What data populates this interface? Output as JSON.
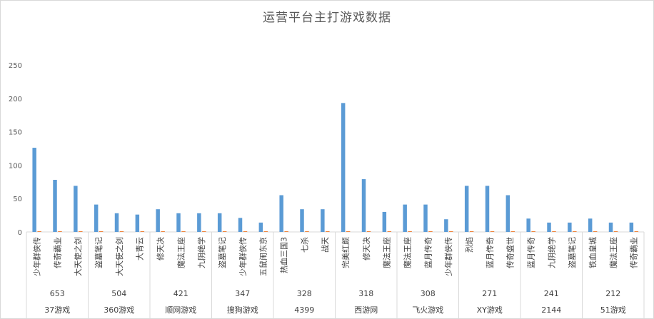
{
  "chart_data": {
    "type": "bar",
    "title": "运营平台主打游戏数据",
    "ylim": [
      0,
      250
    ],
    "yticks": [
      0,
      50,
      100,
      150,
      200,
      250
    ],
    "grid": false,
    "legend": "none",
    "colors": {
      "primary": "#5b9bd5",
      "secondary": "#ed7d31"
    },
    "groups": [
      {
        "name": "37游戏",
        "total": "653",
        "categories": [
          "少年群侠传",
          "传奇霸业",
          "大天使之剑"
        ],
        "values": [
          126,
          78,
          69
        ],
        "values2": [
          1,
          1,
          1
        ]
      },
      {
        "name": "360游戏",
        "total": "504",
        "categories": [
          "盗墓笔记",
          "大天使之剑",
          "大青云"
        ],
        "values": [
          41,
          28,
          26
        ],
        "values2": [
          1,
          1,
          1
        ]
      },
      {
        "name": "顺网游戏",
        "total": "421",
        "categories": [
          "修天决",
          "魔法王座",
          "九阴绝学"
        ],
        "values": [
          34,
          28,
          28
        ],
        "values2": [
          1,
          1,
          1
        ]
      },
      {
        "name": "搜狗游戏",
        "total": "347",
        "categories": [
          "盗墓笔记",
          "少年群侠传",
          "五鼠闹东京"
        ],
        "values": [
          28,
          21,
          14
        ],
        "values2": [
          1,
          1,
          1
        ]
      },
      {
        "name": "4399",
        "total": "328",
        "categories": [
          "热血三国3",
          "七杀",
          "战天"
        ],
        "values": [
          55,
          34,
          34
        ],
        "values2": [
          1,
          1,
          1
        ]
      },
      {
        "name": "西游网",
        "total": "318",
        "categories": [
          "完美红颜",
          "修天决",
          "魔法王座"
        ],
        "values": [
          193,
          79,
          30
        ],
        "values2": [
          1,
          1,
          1
        ]
      },
      {
        "name": "飞火游戏",
        "total": "308",
        "categories": [
          "魔法王座",
          "蓝月传奇",
          "少年群侠传"
        ],
        "values": [
          41,
          41,
          19
        ],
        "values2": [
          1,
          1,
          1
        ]
      },
      {
        "name": "XY游戏",
        "total": "271",
        "categories": [
          "烈焰",
          "蓝月传奇",
          "传奇盛世"
        ],
        "values": [
          69,
          69,
          55
        ],
        "values2": [
          1,
          1,
          1
        ]
      },
      {
        "name": "2144",
        "total": "241",
        "categories": [
          "蓝月传奇",
          "九阴绝学",
          "盗墓笔记"
        ],
        "values": [
          20,
          14,
          14
        ],
        "values2": [
          1,
          1,
          1
        ]
      },
      {
        "name": "51游戏",
        "total": "212",
        "categories": [
          "铁血皇城",
          "魔法王座",
          "传奇霸业"
        ],
        "values": [
          20,
          14,
          14
        ],
        "values2": [
          1,
          1,
          1
        ]
      }
    ]
  }
}
